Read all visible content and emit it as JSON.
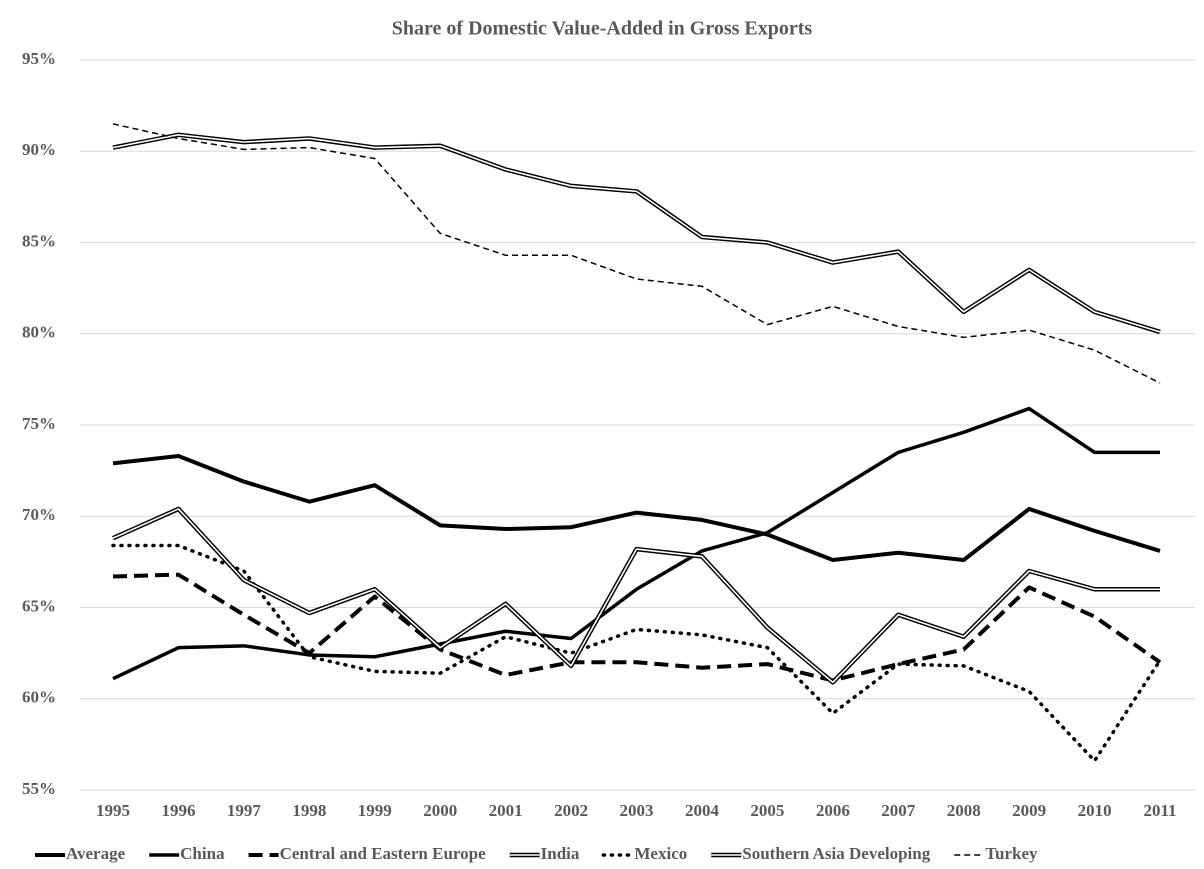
{
  "chart_data": {
    "type": "line",
    "title": "Share of Domestic Value-Added in Gross Exports",
    "categories": [
      "1995",
      "1996",
      "1997",
      "1998",
      "1999",
      "2000",
      "2001",
      "2002",
      "2003",
      "2004",
      "2005",
      "2006",
      "2007",
      "2008",
      "2009",
      "2010",
      "2011"
    ],
    "ylim": [
      55,
      95
    ],
    "yticks": [
      {
        "value": 55,
        "label": "55%"
      },
      {
        "value": 60,
        "label": "60%"
      },
      {
        "value": 65,
        "label": "65%"
      },
      {
        "value": 70,
        "label": "70%"
      },
      {
        "value": 75,
        "label": "75%"
      },
      {
        "value": 80,
        "label": "80%"
      },
      {
        "value": 85,
        "label": "85%"
      },
      {
        "value": 90,
        "label": "90%"
      },
      {
        "value": 95,
        "label": "95%"
      }
    ],
    "grid": true,
    "legend": "bottom",
    "series": [
      {
        "name": "Average",
        "color": "#000000",
        "style": "thick",
        "values": [
          72.9,
          73.3,
          71.9,
          70.8,
          71.7,
          69.5,
          69.3,
          69.4,
          70.2,
          69.8,
          69.0,
          67.6,
          68.0,
          67.6,
          70.4,
          69.2,
          68.1
        ]
      },
      {
        "name": "China",
        "color": "#000000",
        "style": "solid",
        "values": [
          61.1,
          62.8,
          62.9,
          62.4,
          62.3,
          63.0,
          63.7,
          63.3,
          66.0,
          68.1,
          69.1,
          71.3,
          73.5,
          74.6,
          75.9,
          73.5,
          73.5
        ]
      },
      {
        "name": "Central and Eastern Europe",
        "color": "#000000",
        "style": "dashed",
        "values": [
          66.7,
          66.8,
          64.6,
          62.5,
          65.6,
          62.7,
          61.3,
          62.0,
          62.0,
          61.7,
          61.9,
          61.0,
          61.9,
          62.7,
          66.1,
          64.5,
          62.0
        ]
      },
      {
        "name": "India",
        "color": "#000000",
        "style": "double",
        "values": [
          90.2,
          90.9,
          90.5,
          90.7,
          90.2,
          90.3,
          89.0,
          88.1,
          87.8,
          85.3,
          85.0,
          83.9,
          84.5,
          81.2,
          83.5,
          81.2,
          80.1
        ]
      },
      {
        "name": "Mexico",
        "color": "#000000",
        "style": "dotted",
        "values": [
          68.4,
          68.4,
          67.0,
          62.3,
          61.5,
          61.4,
          63.4,
          62.5,
          63.8,
          63.5,
          62.8,
          59.2,
          61.9,
          61.8,
          60.4,
          56.6,
          62.1
        ]
      },
      {
        "name": "Southern Asia Developing",
        "color": "#000000",
        "style": "double",
        "values": [
          68.8,
          70.4,
          66.5,
          64.7,
          66.0,
          62.8,
          65.2,
          61.8,
          68.2,
          67.8,
          63.9,
          60.9,
          64.6,
          63.4,
          67.0,
          66.0,
          66.0
        ]
      },
      {
        "name": "Turkey",
        "color": "#000000",
        "style": "thin-dashed",
        "values": [
          91.5,
          90.7,
          90.1,
          90.2,
          89.6,
          85.5,
          84.3,
          84.3,
          83.0,
          82.6,
          80.5,
          81.5,
          80.4,
          79.8,
          80.2,
          79.1,
          77.3
        ]
      }
    ]
  }
}
